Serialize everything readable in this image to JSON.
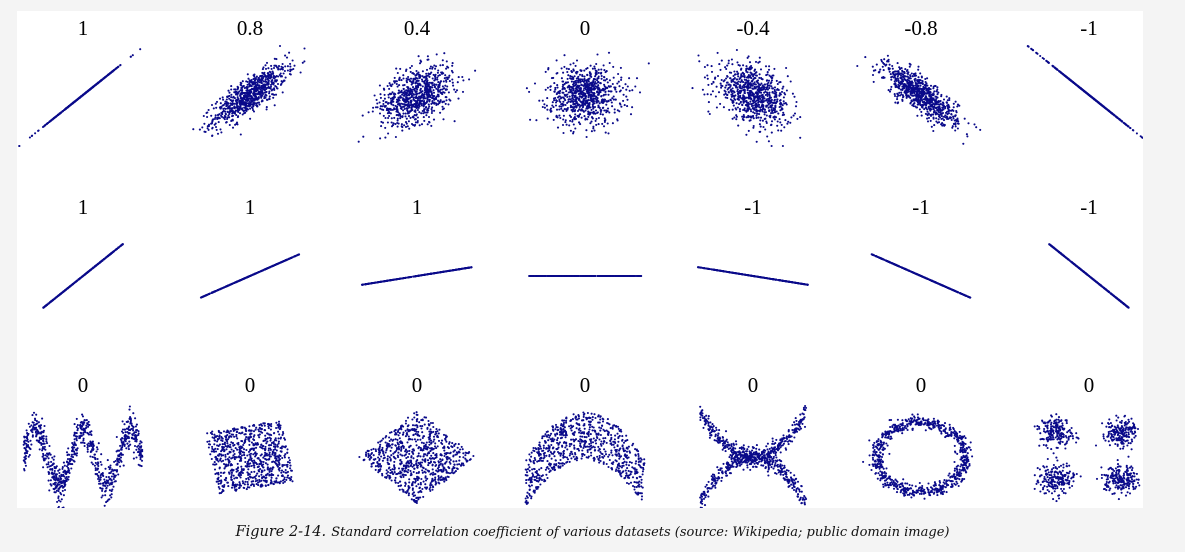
{
  "caption": {
    "label": "Figure 2-14.",
    "text": "Standard correlation coefficient of various datasets (source: Wikipedia; public domain image)"
  },
  "point_color": "#0a0a8a",
  "chart_data": [
    {
      "type": "scatter",
      "row": 1,
      "panels": [
        {
          "title": "1",
          "pattern": "corr",
          "r": 1
        },
        {
          "title": "0.8",
          "pattern": "corr",
          "r": 0.8
        },
        {
          "title": "0.4",
          "pattern": "corr",
          "r": 0.4
        },
        {
          "title": "0",
          "pattern": "corr",
          "r": 0
        },
        {
          "title": "-0.4",
          "pattern": "corr",
          "r": -0.4
        },
        {
          "title": "-0.8",
          "pattern": "corr",
          "r": -0.8
        },
        {
          "title": "-1",
          "pattern": "corr",
          "r": -1
        }
      ]
    },
    {
      "type": "scatter",
      "row": 2,
      "panels": [
        {
          "title": "1",
          "pattern": "line",
          "slope": 1.0
        },
        {
          "title": "1",
          "pattern": "line",
          "slope": 0.55
        },
        {
          "title": "1",
          "pattern": "line",
          "slope": 0.2
        },
        {
          "title": "",
          "pattern": "line",
          "slope": 0
        },
        {
          "title": "-1",
          "pattern": "line",
          "slope": -0.2
        },
        {
          "title": "-1",
          "pattern": "line",
          "slope": -0.55
        },
        {
          "title": "-1",
          "pattern": "line",
          "slope": -1.0
        }
      ]
    },
    {
      "type": "scatter",
      "row": 3,
      "panels": [
        {
          "title": "0",
          "pattern": "wave"
        },
        {
          "title": "0",
          "pattern": "square"
        },
        {
          "title": "0",
          "pattern": "diamond"
        },
        {
          "title": "0",
          "pattern": "parabola"
        },
        {
          "title": "0",
          "pattern": "cross"
        },
        {
          "title": "0",
          "pattern": "ring"
        },
        {
          "title": "0",
          "pattern": "clusters"
        }
      ]
    }
  ]
}
